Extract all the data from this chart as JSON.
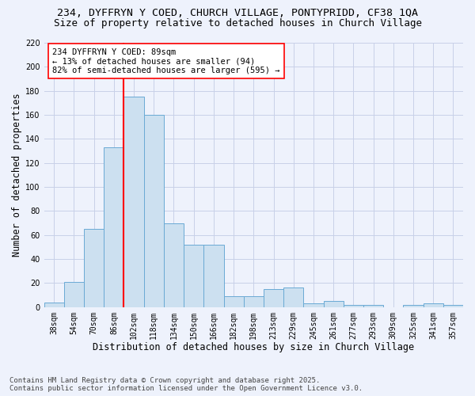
{
  "title_line1": "234, DYFFRYN Y COED, CHURCH VILLAGE, PONTYPRIDD, CF38 1QA",
  "title_line2": "Size of property relative to detached houses in Church Village",
  "xlabel": "Distribution of detached houses by size in Church Village",
  "ylabel": "Number of detached properties",
  "categories": [
    "38sqm",
    "54sqm",
    "70sqm",
    "86sqm",
    "102sqm",
    "118sqm",
    "134sqm",
    "150sqm",
    "166sqm",
    "182sqm",
    "198sqm",
    "213sqm",
    "229sqm",
    "245sqm",
    "261sqm",
    "277sqm",
    "293sqm",
    "309sqm",
    "325sqm",
    "341sqm",
    "357sqm"
  ],
  "values": [
    4,
    21,
    65,
    133,
    175,
    160,
    70,
    52,
    52,
    9,
    9,
    15,
    16,
    3,
    5,
    2,
    2,
    0,
    2,
    3,
    2
  ],
  "bar_color": "#cce0f0",
  "bar_edge_color": "#6aaad4",
  "annotation_text_line1": "234 DYFFRYN Y COED: 89sqm",
  "annotation_text_line2": "← 13% of detached houses are smaller (94)",
  "annotation_text_line3": "82% of semi-detached houses are larger (595) →",
  "vline_color": "red",
  "vline_x_index": 3,
  "ylim": [
    0,
    220
  ],
  "yticks": [
    0,
    20,
    40,
    60,
    80,
    100,
    120,
    140,
    160,
    180,
    200,
    220
  ],
  "footer_line1": "Contains HM Land Registry data © Crown copyright and database right 2025.",
  "footer_line2": "Contains public sector information licensed under the Open Government Licence v3.0.",
  "background_color": "#eef2fc",
  "grid_color": "#c8d0e8",
  "title_fontsize": 9.5,
  "subtitle_fontsize": 9,
  "axis_label_fontsize": 8.5,
  "tick_fontsize": 7,
  "annotation_fontsize": 7.5,
  "footer_fontsize": 6.5
}
